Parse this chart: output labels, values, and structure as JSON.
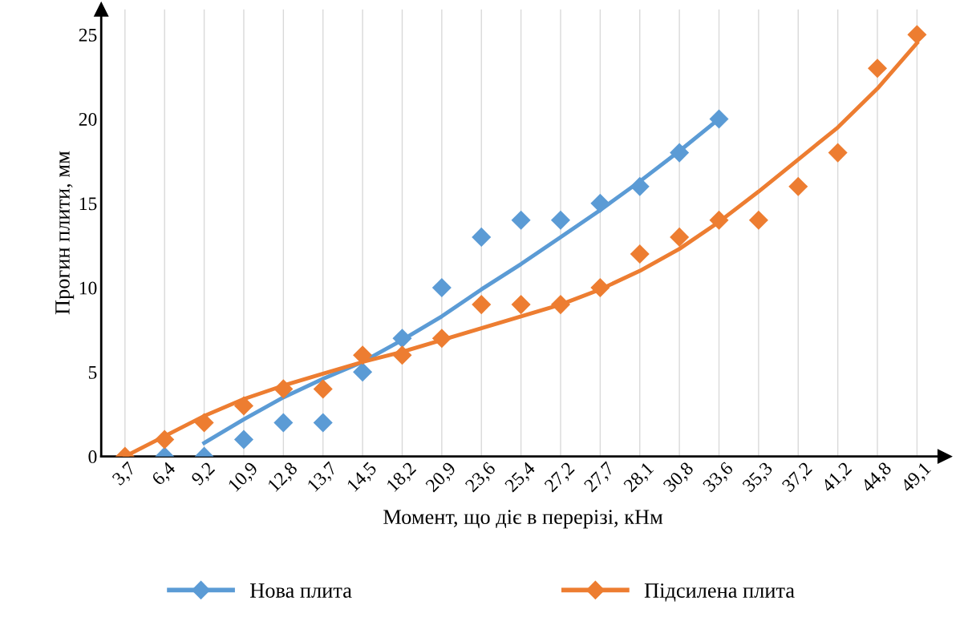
{
  "chart_data": {
    "type": "scatter",
    "xlabel": "Момент, що діє в перерізі, кНм",
    "ylabel": "Прогин плити, мм",
    "categories": [
      "3,7",
      "6,4",
      "9,2",
      "10,9",
      "12,8",
      "13,7",
      "14,5",
      "18,2",
      "20,9",
      "23,6",
      "25,4",
      "27,2",
      "27,7",
      "28,1",
      "30,8",
      "33,6",
      "35,3",
      "37,2",
      "41,2",
      "44,8",
      "49,1"
    ],
    "series": [
      {
        "name": "Нова плита",
        "color": "#5b9bd5",
        "marker": "diamond",
        "values": [
          null,
          0,
          0,
          1,
          2,
          2,
          5,
          7,
          10,
          13,
          14,
          14,
          15,
          16,
          18,
          20,
          null,
          null,
          null,
          null,
          null
        ]
      },
      {
        "name": "Підсилена плита",
        "color": "#ed7d31",
        "marker": "diamond",
        "values": [
          0,
          1,
          2,
          3,
          4,
          4,
          6,
          6,
          7,
          9,
          9,
          9,
          10,
          12,
          13,
          14,
          14,
          16,
          18,
          23,
          25
        ]
      },
      {
        "type": "line",
        "color": "#5b9bd5",
        "marker": "none",
        "values": [
          null,
          null,
          0.8,
          2.2,
          3.5,
          4.6,
          5.6,
          6.9,
          8.3,
          9.9,
          11.4,
          13.0,
          14.6,
          16.3,
          18.1,
          20.0,
          null,
          null,
          null,
          null,
          null
        ]
      },
      {
        "type": "line",
        "color": "#ed7d31",
        "marker": "none",
        "values": [
          0,
          1.2,
          2.4,
          3.4,
          4.2,
          4.9,
          5.6,
          6.2,
          6.9,
          7.6,
          8.3,
          9.0,
          9.9,
          11.0,
          12.3,
          13.9,
          15.7,
          17.6,
          19.5,
          21.8,
          24.5
        ]
      }
    ],
    "ylim": [
      0,
      26.5
    ],
    "yticks": [
      0,
      5,
      10,
      15,
      20,
      25
    ],
    "grid": "x",
    "legend": "bottom"
  }
}
